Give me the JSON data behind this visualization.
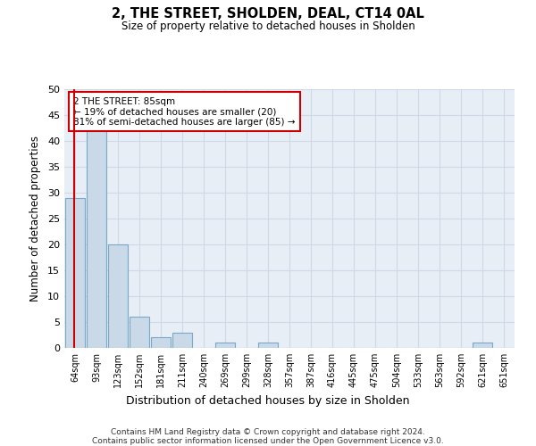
{
  "title": "2, THE STREET, SHOLDEN, DEAL, CT14 0AL",
  "subtitle": "Size of property relative to detached houses in Sholden",
  "xlabel": "Distribution of detached houses by size in Sholden",
  "ylabel": "Number of detached properties",
  "categories": [
    "64sqm",
    "93sqm",
    "123sqm",
    "152sqm",
    "181sqm",
    "211sqm",
    "240sqm",
    "269sqm",
    "299sqm",
    "328sqm",
    "357sqm",
    "387sqm",
    "416sqm",
    "445sqm",
    "475sqm",
    "504sqm",
    "533sqm",
    "563sqm",
    "592sqm",
    "621sqm",
    "651sqm"
  ],
  "values": [
    29,
    42,
    20,
    6,
    2,
    3,
    0,
    1,
    0,
    1,
    0,
    0,
    0,
    0,
    0,
    0,
    0,
    0,
    0,
    1,
    0
  ],
  "bar_color": "#c9d9e8",
  "bar_edge_color": "#7aa8c7",
  "annotation_text_line1": "2 THE STREET: 85sqm",
  "annotation_text_line2": "← 19% of detached houses are smaller (20)",
  "annotation_text_line3": "81% of semi-detached houses are larger (85) →",
  "annotation_box_color": "#ffffff",
  "annotation_box_edge": "#cc0000",
  "vline_color": "#cc0000",
  "ylim": [
    0,
    50
  ],
  "yticks": [
    0,
    5,
    10,
    15,
    20,
    25,
    30,
    35,
    40,
    45,
    50
  ],
  "grid_color": "#d0d8e8",
  "background_color": "#e8eef5",
  "footer_line1": "Contains HM Land Registry data © Crown copyright and database right 2024.",
  "footer_line2": "Contains public sector information licensed under the Open Government Licence v3.0."
}
